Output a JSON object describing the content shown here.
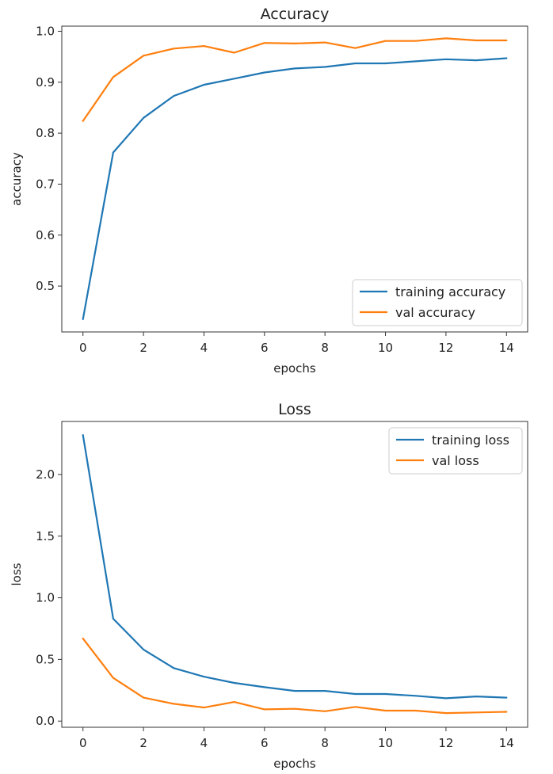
{
  "chart_data": [
    {
      "type": "line",
      "title": "Accuracy",
      "xlabel": "epochs",
      "ylabel": "accuracy",
      "x": [
        0,
        1,
        2,
        3,
        4,
        5,
        6,
        7,
        8,
        9,
        10,
        11,
        12,
        13,
        14
      ],
      "xlim": [
        -0.7,
        14.7
      ],
      "ylim": [
        0.41,
        1.01
      ],
      "xticks": [
        0,
        2,
        4,
        6,
        8,
        10,
        12,
        14
      ],
      "yticks": [
        0.5,
        0.6,
        0.7,
        0.8,
        0.9,
        1.0
      ],
      "ytick_labels": [
        "0.5",
        "0.6",
        "0.7",
        "0.8",
        "0.9",
        "1.0"
      ],
      "legend": "lower-right",
      "series": [
        {
          "name": "training accuracy",
          "color": "#1f77b4",
          "values": [
            0.435,
            0.762,
            0.83,
            0.873,
            0.895,
            0.907,
            0.919,
            0.927,
            0.93,
            0.937,
            0.937,
            0.941,
            0.945,
            0.943,
            0.947
          ]
        },
        {
          "name": "val accuracy",
          "color": "#ff7f0e",
          "values": [
            0.824,
            0.91,
            0.952,
            0.966,
            0.971,
            0.958,
            0.977,
            0.976,
            0.978,
            0.967,
            0.981,
            0.981,
            0.986,
            0.982,
            0.982
          ]
        }
      ]
    },
    {
      "type": "line",
      "title": "Loss",
      "xlabel": "epochs",
      "ylabel": "loss",
      "x": [
        0,
        1,
        2,
        3,
        4,
        5,
        6,
        7,
        8,
        9,
        10,
        11,
        12,
        13,
        14
      ],
      "xlim": [
        -0.7,
        14.7
      ],
      "ylim": [
        -0.05,
        2.43
      ],
      "xticks": [
        0,
        2,
        4,
        6,
        8,
        10,
        12,
        14
      ],
      "yticks": [
        0.0,
        0.5,
        1.0,
        1.5,
        2.0
      ],
      "ytick_labels": [
        "0.0",
        "0.5",
        "1.0",
        "1.5",
        "2.0"
      ],
      "legend": "upper-right",
      "series": [
        {
          "name": "training loss",
          "color": "#1f77b4",
          "values": [
            2.32,
            0.83,
            0.58,
            0.43,
            0.36,
            0.31,
            0.275,
            0.245,
            0.245,
            0.22,
            0.22,
            0.205,
            0.185,
            0.2,
            0.19
          ]
        },
        {
          "name": "val loss",
          "color": "#ff7f0e",
          "values": [
            0.67,
            0.35,
            0.19,
            0.14,
            0.11,
            0.155,
            0.095,
            0.1,
            0.08,
            0.115,
            0.085,
            0.085,
            0.065,
            0.07,
            0.075
          ]
        }
      ]
    }
  ]
}
